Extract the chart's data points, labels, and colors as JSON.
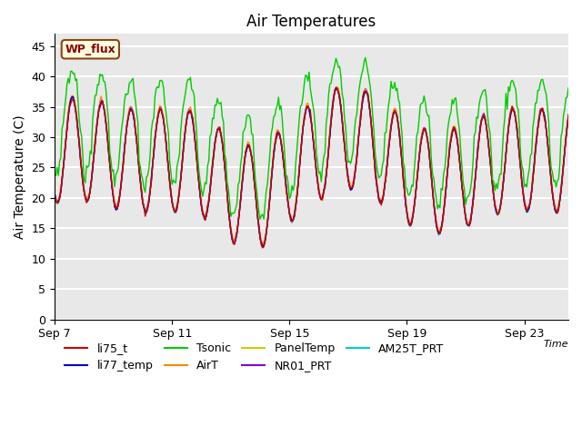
{
  "title": "Air Temperatures",
  "xlabel": "Time",
  "ylabel": "Air Temperature (C)",
  "ylim": [
    0,
    47
  ],
  "yticks": [
    0,
    5,
    10,
    15,
    20,
    25,
    30,
    35,
    40,
    45
  ],
  "xlim_days": [
    0,
    17.5
  ],
  "xtick_positions": [
    0,
    4,
    8,
    12,
    16
  ],
  "xtick_labels": [
    "Sep 7",
    "Sep 11",
    "Sep 15",
    "Sep 19",
    "Sep 23"
  ],
  "annotation_text": "WP_flux",
  "series_colors": {
    "li75_t": "#cc0000",
    "li77_temp": "#0000cc",
    "Tsonic": "#00cc00",
    "AirT": "#ff8800",
    "PanelTemp": "#cccc00",
    "NR01_PRT": "#8800cc",
    "AM25T_PRT": "#00cccc"
  },
  "background_color": "#ffffff",
  "plot_bg_color": "#e8e8e8",
  "grid_color": "#ffffff",
  "title_fontsize": 12,
  "label_fontsize": 10,
  "tick_fontsize": 9,
  "legend_fontsize": 9,
  "n_points": 421
}
